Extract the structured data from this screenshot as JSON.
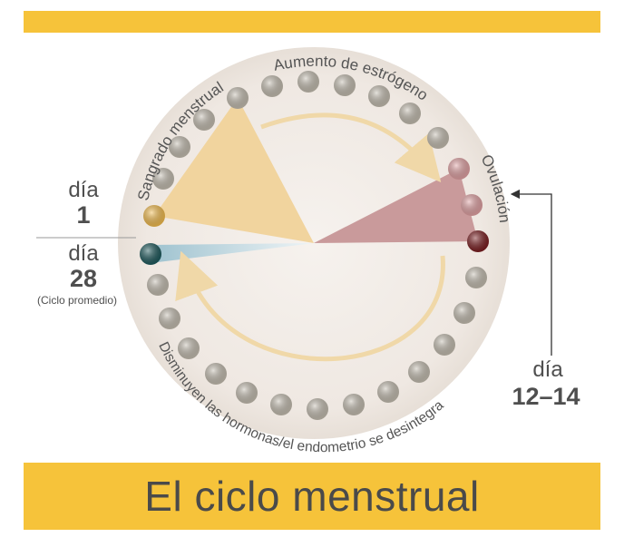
{
  "title": "El ciclo menstrual",
  "arc_labels": {
    "menstrual": "Sangrado menstrual",
    "estrogen": "Aumento de estrógeno",
    "ovulation": "Ovulación",
    "decline": "Disminuyen las hormonas/el endometrio se desintegra"
  },
  "day_labels": {
    "start_word": "día",
    "start_num": "1",
    "end_word": "día",
    "end_num": "28",
    "end_note": "(Ciclo promedio)",
    "ovulation_word": "día",
    "ovulation_num": "12–14"
  },
  "colors": {
    "accent_yellow": "#f6c33a",
    "menstrual_sector": "#f1d49e",
    "ovulation_sector": "#c99a9b",
    "day28_sector": "#b9d4dd",
    "bead_default": "#c6bfb2",
    "bead_day1": "#f4bd4f",
    "bead_ovulation_light": "#e3a3a5",
    "bead_ovulation_dark": "#7c1f22",
    "bead_day28": "#1f5b5e"
  }
}
